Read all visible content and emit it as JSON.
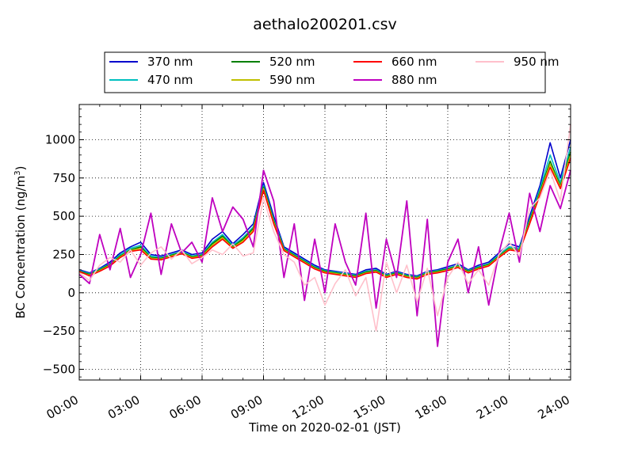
{
  "chart_data": {
    "type": "line",
    "title": "aethalo200201.csv",
    "xlabel": "Time on 2020-02-01 (JST)",
    "ylabel": "BC Concentration (ng/m3)",
    "ylabel_main": "BC Concentration (ng/m",
    "ylabel_sup": "3",
    "ylabel_close": ")",
    "xlim": [
      "00:00",
      "24:00"
    ],
    "ylim": [
      -570,
      1230
    ],
    "x_ticks": [
      "00:00",
      "03:00",
      "06:00",
      "09:00",
      "12:00",
      "15:00",
      "18:00",
      "21:00",
      "24:00"
    ],
    "y_ticks": [
      -500,
      -250,
      0,
      250,
      500,
      750,
      1000
    ],
    "grid": true,
    "legend_position": "top-center, above plot",
    "x_hours": [
      0,
      0.5,
      1,
      1.5,
      2,
      2.5,
      3,
      3.5,
      4,
      4.5,
      5,
      5.5,
      6,
      6.5,
      7,
      7.5,
      8,
      8.5,
      9,
      9.5,
      10,
      10.5,
      11,
      11.5,
      12,
      12.5,
      13,
      13.5,
      14,
      14.5,
      15,
      15.5,
      16,
      16.5,
      17,
      17.5,
      18,
      18.5,
      19,
      19.5,
      20,
      20.5,
      21,
      21.5,
      22,
      22.5,
      23,
      23.5,
      24
    ],
    "series": [
      {
        "name": "370 nm",
        "color": "#0000cc",
        "values": [
          150,
          130,
          160,
          200,
          260,
          300,
          330,
          250,
          240,
          260,
          280,
          250,
          260,
          350,
          400,
          320,
          380,
          450,
          720,
          500,
          300,
          260,
          220,
          180,
          150,
          140,
          130,
          120,
          150,
          160,
          120,
          140,
          120,
          110,
          140,
          150,
          170,
          190,
          150,
          180,
          200,
          260,
          320,
          300,
          500,
          700,
          980,
          750,
          1000
        ]
      },
      {
        "name": "470 nm",
        "color": "#00bfbf",
        "values": [
          145,
          125,
          155,
          190,
          250,
          290,
          310,
          240,
          230,
          250,
          270,
          240,
          250,
          330,
          380,
          310,
          360,
          430,
          700,
          480,
          290,
          250,
          210,
          170,
          145,
          135,
          125,
          115,
          140,
          150,
          115,
          135,
          115,
          105,
          135,
          145,
          160,
          180,
          145,
          170,
          190,
          250,
          300,
          290,
          480,
          680,
          900,
          720,
          950
        ]
      },
      {
        "name": "520 nm",
        "color": "#007f00",
        "values": [
          140,
          120,
          150,
          185,
          240,
          280,
          300,
          230,
          225,
          245,
          265,
          235,
          245,
          320,
          370,
          300,
          350,
          420,
          690,
          470,
          285,
          245,
          205,
          165,
          140,
          130,
          120,
          110,
          135,
          145,
          110,
          130,
          110,
          100,
          130,
          140,
          155,
          175,
          140,
          165,
          185,
          240,
          290,
          280,
          470,
          660,
          860,
          700,
          920
        ]
      },
      {
        "name": "590 nm",
        "color": "#bfbf00",
        "values": [
          135,
          115,
          145,
          180,
          235,
          275,
          290,
          225,
          220,
          240,
          260,
          230,
          240,
          310,
          360,
          295,
          340,
          410,
          680,
          460,
          280,
          240,
          200,
          160,
          135,
          125,
          115,
          105,
          130,
          140,
          105,
          125,
          105,
          95,
          125,
          135,
          150,
          170,
          135,
          160,
          180,
          235,
          285,
          275,
          460,
          650,
          840,
          690,
          900
        ]
      },
      {
        "name": "660 nm",
        "color": "#ff0000",
        "values": [
          140,
          110,
          140,
          175,
          230,
          270,
          280,
          220,
          215,
          235,
          255,
          225,
          235,
          300,
          350,
          290,
          330,
          400,
          670,
          450,
          275,
          235,
          195,
          155,
          130,
          120,
          110,
          100,
          125,
          135,
          100,
          120,
          100,
          90,
          120,
          130,
          145,
          165,
          130,
          155,
          175,
          230,
          280,
          270,
          450,
          640,
          820,
          680,
          880
        ]
      },
      {
        "name": "880 nm",
        "color": "#bf00bf",
        "values": [
          120,
          60,
          380,
          150,
          420,
          100,
          250,
          520,
          120,
          450,
          260,
          330,
          200,
          620,
          400,
          560,
          480,
          300,
          800,
          600,
          100,
          450,
          -50,
          350,
          0,
          450,
          200,
          50,
          520,
          -100,
          350,
          100,
          600,
          -150,
          480,
          -350,
          200,
          350,
          0,
          300,
          -80,
          260,
          520,
          200,
          650,
          400,
          700,
          550,
          800
        ]
      },
      {
        "name": "950 nm",
        "color": "#ffc0cb",
        "values": [
          130,
          80,
          180,
          230,
          200,
          280,
          180,
          260,
          300,
          220,
          280,
          190,
          230,
          280,
          250,
          320,
          240,
          260,
          620,
          400,
          250,
          200,
          50,
          100,
          -80,
          60,
          150,
          -20,
          100,
          -250,
          200,
          0,
          180,
          -60,
          160,
          -150,
          100,
          200,
          60,
          150,
          50,
          250,
          330,
          240,
          550,
          620,
          800,
          600,
          1100
        ]
      }
    ]
  }
}
